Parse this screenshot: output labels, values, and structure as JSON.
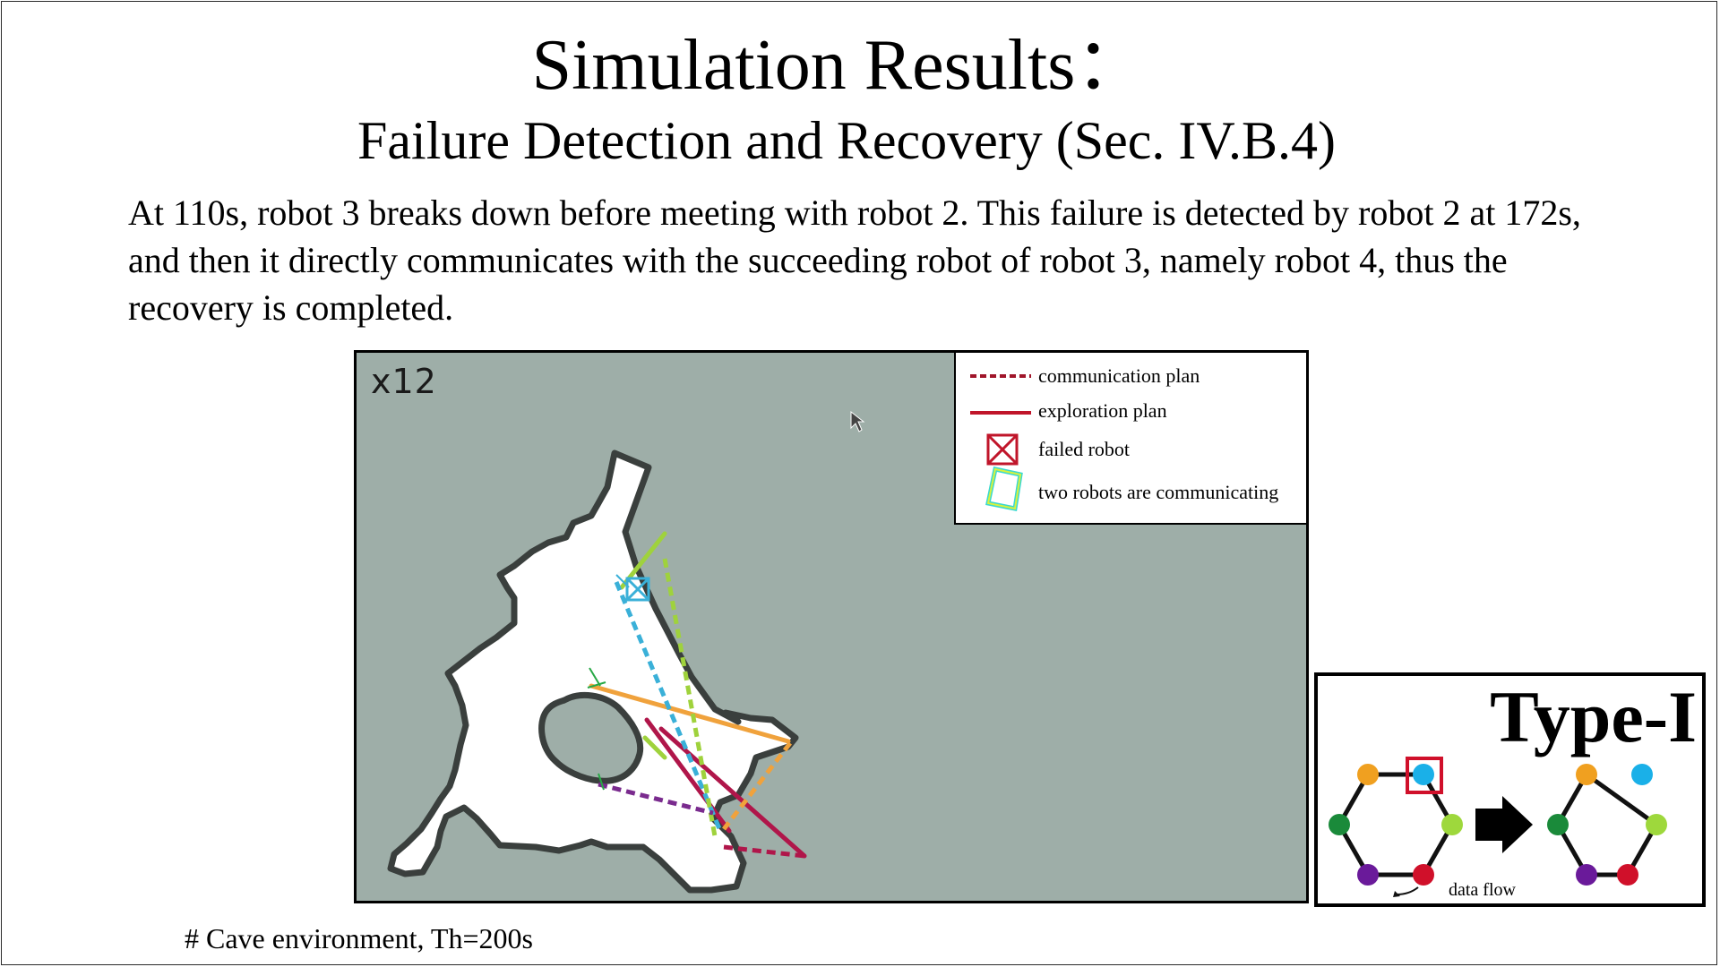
{
  "slide": {
    "title": "Simulation Results：",
    "subtitle": "Failure Detection and Recovery (Sec. IV.B.4)",
    "description": "At 110s, robot 3 breaks down before meeting with robot 2. This failure is detected by robot 2 at 172s, and then it directly communicates with the succeeding robot of robot 3, namely robot 4, thus the recovery is completed.",
    "footnote": "# Cave environment, Th=200s"
  },
  "simulation": {
    "speed_label": "x12",
    "colors": {
      "background": "#9eaea8",
      "free_space": "#ffffff",
      "wall": "#3a3f3d",
      "orange": "#f0a23c",
      "blue": "#3ab0d8",
      "green": "#9fd23c",
      "purple": "#7a2b8e",
      "crimson": "#b0164a"
    }
  },
  "legend": {
    "items": [
      {
        "icon": "dashed-line-icon",
        "label": "communication plan",
        "color": "#a0152a"
      },
      {
        "icon": "solid-line-icon",
        "label": "exploration plan",
        "color": "#c0152a"
      },
      {
        "icon": "failed-robot-icon",
        "label": "failed robot",
        "color": "#c0152a"
      },
      {
        "icon": "communicating-box-icon",
        "label": "two robots are communicating",
        "color": "#3ad8d0"
      }
    ]
  },
  "type_panel": {
    "title": "Type-I",
    "data_flow_label": "data flow",
    "node_colors": [
      "#f0a020",
      "#1ab0e8",
      "#9ed83c",
      "#d0102a",
      "#6a1a9a",
      "#1a8a3a"
    ]
  }
}
